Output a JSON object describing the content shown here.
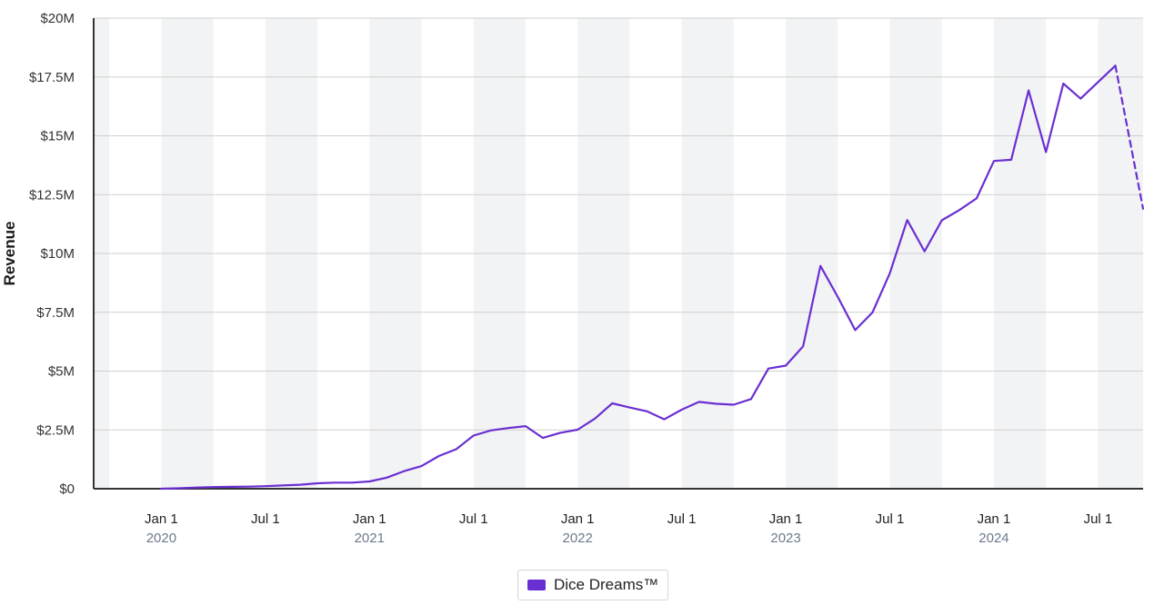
{
  "chart_data": {
    "type": "line",
    "title": "",
    "xlabel": "",
    "ylabel": "Revenue",
    "ylim": [
      0,
      20000000
    ],
    "grid": true,
    "legend_position": "bottom-center",
    "y_ticks": [
      {
        "value": 0,
        "label": "$0"
      },
      {
        "value": 2500000,
        "label": "$2.5M"
      },
      {
        "value": 5000000,
        "label": "$5M"
      },
      {
        "value": 7500000,
        "label": "$7.5M"
      },
      {
        "value": 10000000,
        "label": "$10M"
      },
      {
        "value": 12500000,
        "label": "$12.5M"
      },
      {
        "value": 15000000,
        "label": "$15M"
      },
      {
        "value": 17500000,
        "label": "$17.5M"
      },
      {
        "value": 20000000,
        "label": "$20M"
      }
    ],
    "x_ticks": [
      {
        "month_index": 0,
        "label": "Jan 1",
        "sublabel": "2020"
      },
      {
        "month_index": 6,
        "label": "Jul 1",
        "sublabel": ""
      },
      {
        "month_index": 12,
        "label": "Jan 1",
        "sublabel": "2021"
      },
      {
        "month_index": 18,
        "label": "Jul 1",
        "sublabel": ""
      },
      {
        "month_index": 24,
        "label": "Jan 1",
        "sublabel": "2022"
      },
      {
        "month_index": 30,
        "label": "Jul 1",
        "sublabel": ""
      },
      {
        "month_index": 36,
        "label": "Jan 1",
        "sublabel": "2023"
      },
      {
        "month_index": 42,
        "label": "Jul 1",
        "sublabel": ""
      },
      {
        "month_index": 48,
        "label": "Jan 1",
        "sublabel": "2024"
      },
      {
        "month_index": 54,
        "label": "Jul 1",
        "sublabel": ""
      }
    ],
    "x_range_months": [
      -3.9,
      56.6
    ],
    "band_ranges_months": [
      [
        -3.9,
        -3
      ],
      [
        0,
        3
      ],
      [
        6,
        9
      ],
      [
        12,
        15
      ],
      [
        18,
        21
      ],
      [
        24,
        27
      ],
      [
        30,
        33
      ],
      [
        36,
        39
      ],
      [
        42,
        45
      ],
      [
        48,
        51
      ],
      [
        54,
        56.6
      ]
    ],
    "series": [
      {
        "name": "Dice Dreams™",
        "color": "#6a2fd1",
        "points": [
          [
            0,
            0
          ],
          [
            1,
            20000
          ],
          [
            2,
            50000
          ],
          [
            3,
            70000
          ],
          [
            4,
            80000
          ],
          [
            5,
            90000
          ],
          [
            6,
            110000
          ],
          [
            7,
            140000
          ],
          [
            8,
            170000
          ],
          [
            9,
            230000
          ],
          [
            10,
            260000
          ],
          [
            11,
            260000
          ],
          [
            12,
            310000
          ],
          [
            13,
            470000
          ],
          [
            14,
            750000
          ],
          [
            15,
            960000
          ],
          [
            16,
            1390000
          ],
          [
            17,
            1680000
          ],
          [
            18,
            2260000
          ],
          [
            19,
            2480000
          ],
          [
            20,
            2580000
          ],
          [
            21,
            2660000
          ],
          [
            22,
            2160000
          ],
          [
            23,
            2380000
          ],
          [
            24,
            2510000
          ],
          [
            25,
            2980000
          ],
          [
            26,
            3630000
          ],
          [
            27,
            3450000
          ],
          [
            28,
            3290000
          ],
          [
            29,
            2950000
          ],
          [
            30,
            3360000
          ],
          [
            31,
            3690000
          ],
          [
            32,
            3610000
          ],
          [
            33,
            3570000
          ],
          [
            34,
            3810000
          ],
          [
            35,
            5110000
          ],
          [
            36,
            5230000
          ],
          [
            37,
            6050000
          ],
          [
            38,
            9470000
          ],
          [
            39,
            8150000
          ],
          [
            40,
            6740000
          ],
          [
            41,
            7490000
          ],
          [
            42,
            9160000
          ],
          [
            43,
            11420000
          ],
          [
            44,
            10090000
          ],
          [
            45,
            11410000
          ],
          [
            46,
            11840000
          ],
          [
            47,
            12340000
          ],
          [
            48,
            13930000
          ],
          [
            49,
            13980000
          ],
          [
            50,
            16930000
          ],
          [
            51,
            14310000
          ],
          [
            52,
            17220000
          ],
          [
            53,
            16580000
          ],
          [
            54,
            17280000
          ],
          [
            55,
            17980000
          ]
        ],
        "projection": [
          [
            55,
            17980000
          ],
          [
            56.6,
            11900000
          ]
        ]
      }
    ]
  }
}
